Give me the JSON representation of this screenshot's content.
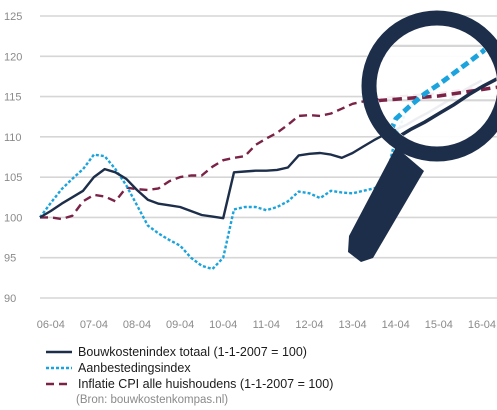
{
  "chart_data": {
    "type": "line",
    "title": "",
    "xlabel": "",
    "ylabel": "",
    "ylim": [
      90,
      125
    ],
    "yticks": [
      90,
      95,
      100,
      105,
      110,
      115,
      120,
      125
    ],
    "xlim": [
      2006.0,
      2016.6
    ],
    "xtick_labels": [
      "06-04",
      "07-04",
      "08-04",
      "09-04",
      "10-04",
      "11-04",
      "12-04",
      "13-04",
      "14-04",
      "15-04",
      "16-04"
    ],
    "xtick_positions": [
      2006.25,
      2007.25,
      2008.25,
      2009.25,
      2010.25,
      2011.25,
      2012.25,
      2013.25,
      2014.25,
      2015.25,
      2016.25
    ],
    "grid": true,
    "legend_placement": "bottom",
    "series": [
      {
        "name": "Bouwkostenindex totaal (1-1-2007 = 100)",
        "color": "#1d2e4a",
        "style": "solid",
        "x": [
          2006.0,
          2006.25,
          2006.5,
          2006.75,
          2007.0,
          2007.25,
          2007.5,
          2007.75,
          2008.0,
          2008.25,
          2008.5,
          2008.75,
          2009.0,
          2009.25,
          2009.5,
          2009.75,
          2010.0,
          2010.25,
          2010.5,
          2010.75,
          2011.0,
          2011.25,
          2011.5,
          2011.75,
          2012.0,
          2012.25,
          2012.5,
          2012.75,
          2013.0,
          2013.25,
          2013.5,
          2013.75,
          2014.0,
          2014.25,
          2014.5,
          2014.75,
          2015.0,
          2015.25,
          2015.5,
          2015.75,
          2016.0,
          2016.25
        ],
        "y": [
          100.0,
          100.8,
          101.7,
          102.5,
          103.3,
          105.0,
          106.0,
          105.6,
          104.8,
          103.4,
          102.2,
          101.7,
          101.5,
          101.3,
          100.8,
          100.3,
          100.1,
          99.9,
          105.6,
          105.7,
          105.8,
          105.8,
          105.9,
          106.2,
          107.7,
          107.9,
          108.0,
          107.8,
          107.4,
          108.0,
          108.8,
          109.6,
          110.3,
          110.9,
          111.5,
          112.3,
          113.0,
          113.8,
          114.6,
          115.5,
          116.3,
          117.0
        ]
      },
      {
        "name": "Aanbestedingsindex",
        "color": "#1aa3dc",
        "style": "dotted",
        "x": [
          2006.0,
          2006.25,
          2006.5,
          2006.75,
          2007.0,
          2007.25,
          2007.5,
          2007.75,
          2008.0,
          2008.25,
          2008.5,
          2008.75,
          2009.0,
          2009.25,
          2009.5,
          2009.75,
          2010.0,
          2010.25,
          2010.5,
          2010.75,
          2011.0,
          2011.25,
          2011.5,
          2011.75,
          2012.0,
          2012.25,
          2012.5,
          2012.75,
          2013.0,
          2013.25,
          2013.5,
          2013.75,
          2014.0,
          2014.25,
          2014.5,
          2014.75,
          2015.0,
          2015.25,
          2015.5,
          2015.75,
          2016.0,
          2016.25
        ],
        "y": [
          100.0,
          101.8,
          103.5,
          104.8,
          106.0,
          107.8,
          107.6,
          106.0,
          104.0,
          101.5,
          99.0,
          98.0,
          97.2,
          96.5,
          95.0,
          94.0,
          93.6,
          95.0,
          101.0,
          101.3,
          101.3,
          100.9,
          101.3,
          102.0,
          103.2,
          103.0,
          102.4,
          103.3,
          103.1,
          103.0,
          103.3,
          103.6,
          104.2,
          110.0,
          113.3,
          114.5,
          115.6,
          116.5,
          117.5,
          118.5,
          119.5,
          121.0
        ]
      },
      {
        "name": "Inflatie CPI alle huishoudens (1-1-2007 = 100)",
        "color": "#7a2347",
        "style": "dashed",
        "x": [
          2006.0,
          2006.25,
          2006.5,
          2006.75,
          2007.0,
          2007.25,
          2007.5,
          2007.75,
          2008.0,
          2008.25,
          2008.5,
          2008.75,
          2009.0,
          2009.25,
          2009.5,
          2009.75,
          2010.0,
          2010.25,
          2010.5,
          2010.75,
          2011.0,
          2011.25,
          2011.5,
          2011.75,
          2012.0,
          2012.25,
          2012.5,
          2012.75,
          2013.0,
          2013.25,
          2013.5,
          2013.75,
          2014.0,
          2014.25,
          2014.5,
          2014.75,
          2015.0,
          2015.25,
          2015.5,
          2015.75,
          2016.0,
          2016.25
        ],
        "y": [
          100.0,
          100.0,
          99.8,
          100.2,
          102.0,
          102.8,
          102.6,
          102.0,
          103.7,
          103.5,
          103.4,
          103.6,
          104.5,
          105.0,
          105.2,
          105.2,
          106.3,
          107.1,
          107.4,
          107.6,
          109.0,
          109.8,
          110.5,
          111.5,
          112.6,
          112.7,
          112.6,
          112.9,
          113.5,
          114.1,
          114.4,
          114.6,
          114.8,
          115.0,
          115.1,
          115.2,
          115.3,
          115.4,
          115.6,
          115.8,
          116.0,
          116.2
        ]
      }
    ]
  },
  "source": "(Bron: bouwkostenkompas.nl)",
  "magnifier_icon": "magnifier-icon"
}
